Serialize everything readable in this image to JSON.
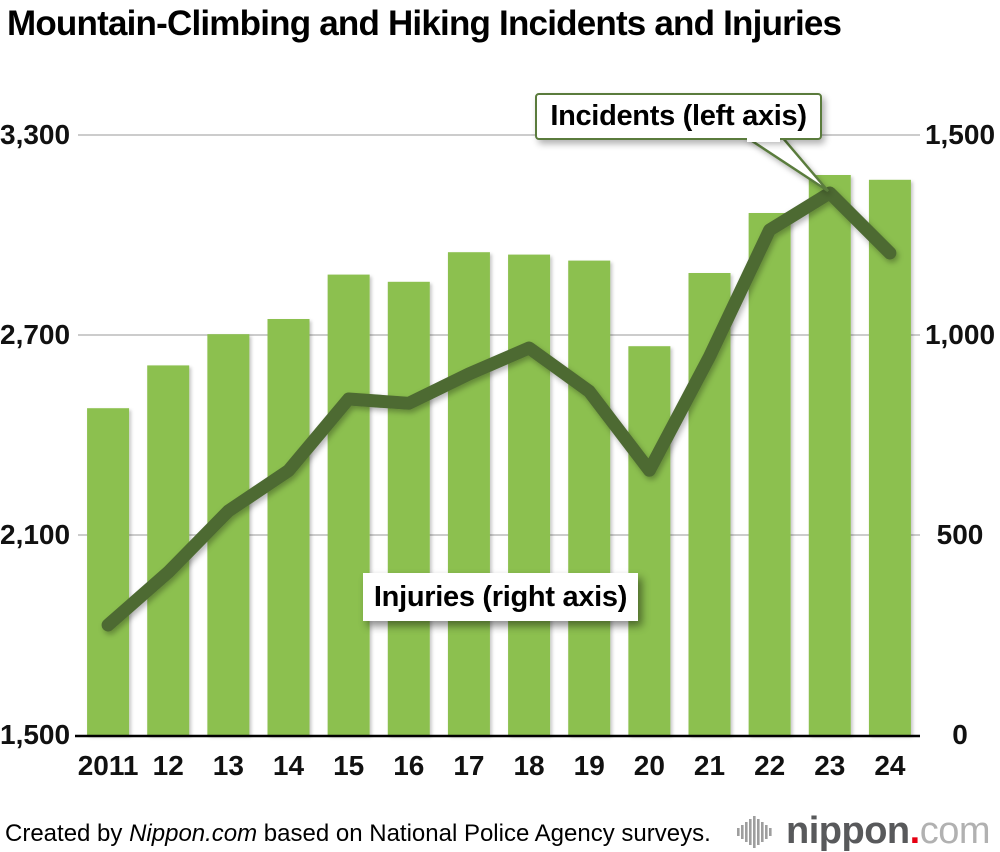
{
  "title": "Mountain-Climbing and Hiking Incidents and Injuries",
  "callouts": {
    "incidents": "Incidents (left axis)",
    "injuries": "Injuries (right axis)"
  },
  "footer": {
    "prefix": "Created by ",
    "source_name": "Nippon.com",
    "suffix": " based on National Police Agency surveys."
  },
  "logo": {
    "brand": "nippon",
    "dot": ".",
    "tld": "com"
  },
  "colors": {
    "bar_green": "#8cc04f",
    "line_green": "#4d6b31",
    "callout_border": "#5a7b3c",
    "gridline": "#cccccc",
    "axis_line": "#000000",
    "logo_gray": "#58595b",
    "logo_light_gray": "#b1b1b1",
    "logo_dot_red": "#e60012"
  },
  "chart_data": {
    "type": "bar+line",
    "title": "Mountain-Climbing and Hiking Incidents and Injuries",
    "categories": [
      "2011",
      "12",
      "13",
      "14",
      "15",
      "16",
      "17",
      "18",
      "19",
      "20",
      "21",
      "22",
      "23",
      "24"
    ],
    "series": [
      {
        "name": "Injuries",
        "type": "bar",
        "axis": "right",
        "color": "#8cc04f",
        "values": [
          817,
          924,
          1002,
          1040,
          1151,
          1133,
          1207,
          1201,
          1186,
          972,
          1155,
          1305,
          1400,
          1388
        ]
      },
      {
        "name": "Incidents",
        "type": "line",
        "axis": "left",
        "color": "#4d6b31",
        "values": [
          1830,
          1988,
          2172,
          2293,
          2508,
          2495,
          2583,
          2661,
          2531,
          2294,
          2635,
          3015,
          3126,
          2946
        ]
      }
    ],
    "left_axis": {
      "min": 1500,
      "max": 3300,
      "tick_values": [
        3300,
        2700,
        2100,
        1500
      ],
      "ticks": [
        "3,300",
        "2,700",
        "2,100",
        "1,500"
      ]
    },
    "right_axis": {
      "min": 0,
      "max": 1500,
      "tick_values": [
        1500,
        1000,
        500,
        0
      ],
      "ticks": [
        "1,500",
        "1,000",
        "500",
        "0"
      ]
    },
    "grid": true,
    "legend_position": "callout annotations inside plot",
    "annotations": [
      {
        "text": "Incidents (left axis)",
        "style": "white box with green border and pointer tail to 2023 line peak"
      },
      {
        "text": "Injuries (right axis)",
        "style": "white box with drop shadow over bars"
      }
    ]
  }
}
